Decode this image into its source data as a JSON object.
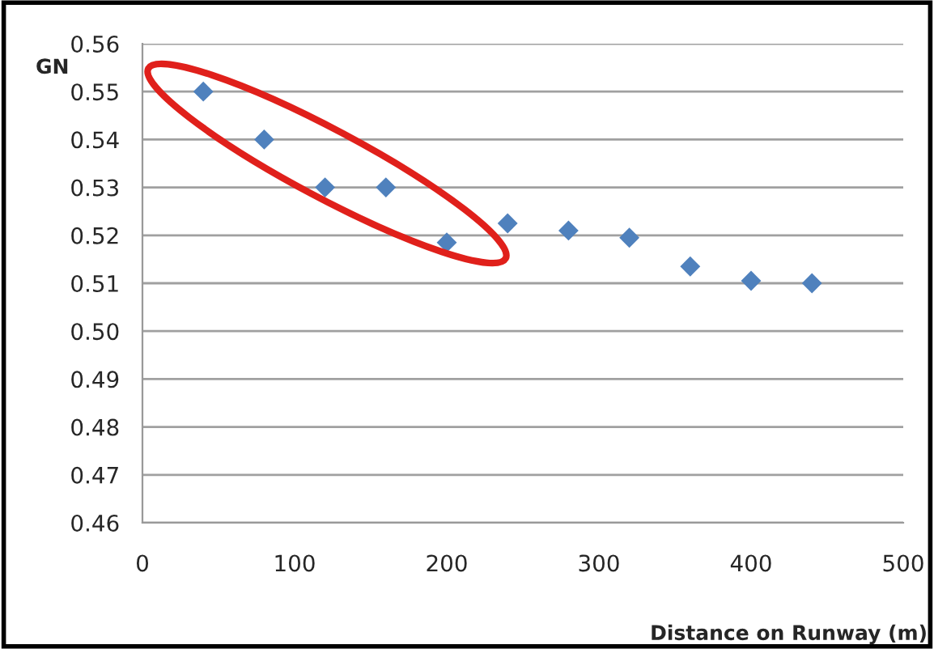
{
  "chart_data": {
    "type": "scatter",
    "xlabel": "Distance on Runway (m)",
    "ylabel": "GN",
    "x": [
      40,
      80,
      120,
      160,
      200,
      240,
      280,
      320,
      360,
      400,
      440
    ],
    "series": [
      {
        "color": "#4f81bd",
        "values": [
          0.55,
          0.54,
          0.53,
          0.53,
          0.5185,
          0.5225,
          0.521,
          0.5195,
          0.5135,
          0.5105,
          0.51
        ]
      }
    ],
    "marker": "diamond",
    "grid": "y",
    "legend": false,
    "xlim": [
      0,
      500
    ],
    "xticks": [
      0,
      100,
      200,
      300,
      400,
      500
    ],
    "ylim": [
      0.46,
      0.56
    ],
    "yticks": [
      {
        "value": 0.46,
        "label": "0.46"
      },
      {
        "value": 0.47,
        "label": "0.47"
      },
      {
        "value": 0.48,
        "label": "0.48"
      },
      {
        "value": 0.49,
        "label": "0.49"
      },
      {
        "value": 0.5,
        "label": "0.50"
      },
      {
        "value": 0.51,
        "label": "0.51"
      },
      {
        "value": 0.52,
        "label": "0.52"
      },
      {
        "value": 0.53,
        "label": "0.53"
      },
      {
        "value": 0.54,
        "label": "0.54"
      },
      {
        "value": 0.55,
        "label": "0.55"
      },
      {
        "value": 0.56,
        "label": "0.56"
      }
    ]
  }
}
